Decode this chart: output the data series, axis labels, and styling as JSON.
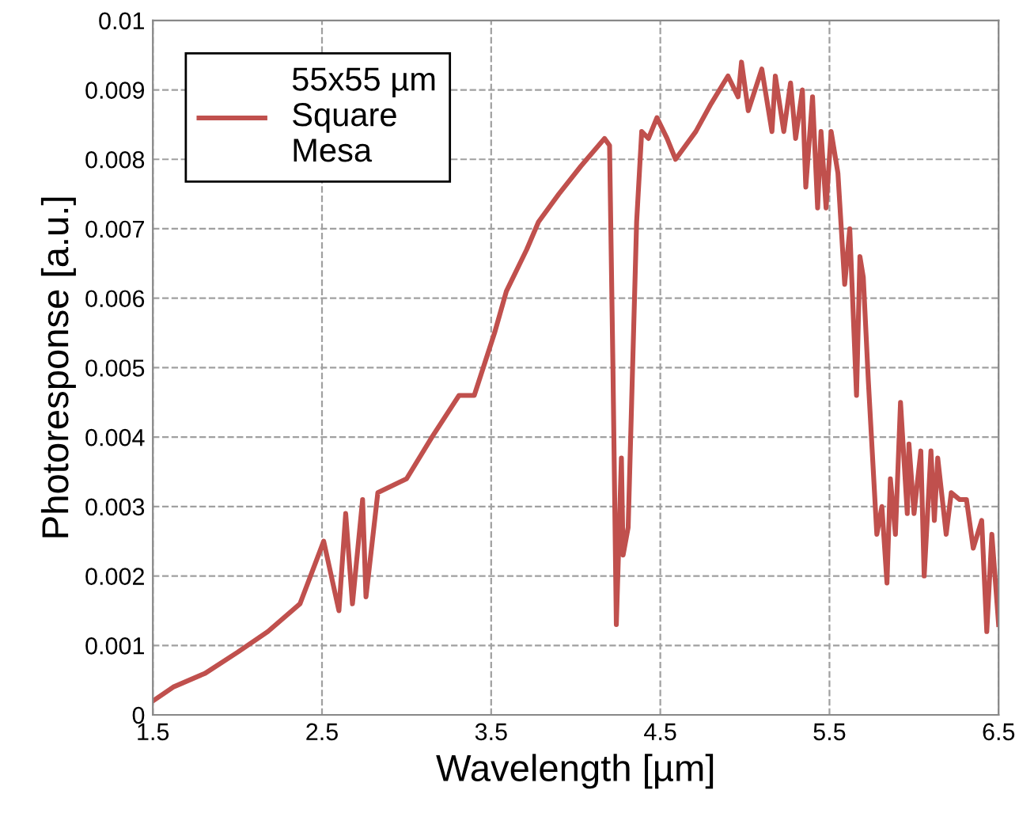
{
  "chart_data": {
    "type": "line",
    "xlabel": "Wavelength [µm]",
    "ylabel": "Photoresponse [a.u.]",
    "xlim": [
      1.5,
      6.5
    ],
    "xticks": [
      1.5,
      2.5,
      3.5,
      4.5,
      5.5,
      6.5
    ],
    "ylim": [
      0,
      0.01
    ],
    "yticks": [
      0,
      0.001,
      0.002,
      0.003,
      0.004,
      0.005,
      0.006,
      0.007,
      0.008,
      0.009,
      0.01
    ],
    "grid": true,
    "legend": "top left",
    "marker": "none",
    "line_style": "solid",
    "series": [
      {
        "name": "55x55 µm\nSquare\nMesa",
        "color": "#c0504d",
        "x": [
          1.5,
          1.62,
          1.81,
          2.0,
          2.18,
          2.37,
          2.51,
          2.6,
          2.64,
          2.68,
          2.74,
          2.76,
          2.83,
          3.0,
          3.15,
          3.31,
          3.4,
          3.52,
          3.59,
          3.71,
          3.78,
          3.9,
          4.03,
          4.17,
          4.2,
          4.22,
          4.24,
          4.27,
          4.28,
          4.31,
          4.36,
          4.39,
          4.43,
          4.48,
          4.54,
          4.59,
          4.71,
          4.8,
          4.9,
          4.96,
          4.98,
          5.02,
          5.1,
          5.16,
          5.18,
          5.23,
          5.27,
          5.3,
          5.34,
          5.36,
          5.4,
          5.43,
          5.45,
          5.48,
          5.51,
          5.55,
          5.59,
          5.62,
          5.66,
          5.68,
          5.7,
          5.73,
          5.78,
          5.81,
          5.84,
          5.86,
          5.89,
          5.92,
          5.96,
          5.97,
          6.0,
          6.04,
          6.06,
          6.1,
          6.12,
          6.14,
          6.19,
          6.22,
          6.27,
          6.31,
          6.35,
          6.4,
          6.43,
          6.46,
          6.5
        ],
        "values": [
          0.0002,
          0.0004,
          0.0006,
          0.0009,
          0.0012,
          0.0016,
          0.0025,
          0.0015,
          0.0029,
          0.0016,
          0.0031,
          0.0017,
          0.0032,
          0.0034,
          0.004,
          0.0046,
          0.0046,
          0.0055,
          0.0061,
          0.0067,
          0.0071,
          0.0075,
          0.0079,
          0.0083,
          0.0082,
          0.005,
          0.0013,
          0.0037,
          0.0023,
          0.0027,
          0.0071,
          0.0084,
          0.0083,
          0.0086,
          0.0083,
          0.008,
          0.0084,
          0.0088,
          0.0092,
          0.0089,
          0.0094,
          0.0087,
          0.0093,
          0.0084,
          0.0092,
          0.0084,
          0.0091,
          0.0083,
          0.009,
          0.0076,
          0.0089,
          0.0073,
          0.0084,
          0.0073,
          0.0084,
          0.0078,
          0.0062,
          0.007,
          0.0046,
          0.0066,
          0.0063,
          0.0048,
          0.0026,
          0.003,
          0.0019,
          0.0034,
          0.0026,
          0.0045,
          0.0029,
          0.0039,
          0.0029,
          0.0038,
          0.002,
          0.0038,
          0.0028,
          0.0037,
          0.0026,
          0.0032,
          0.0031,
          0.0031,
          0.0024,
          0.0028,
          0.0012,
          0.0026,
          0.0013
        ]
      }
    ]
  }
}
